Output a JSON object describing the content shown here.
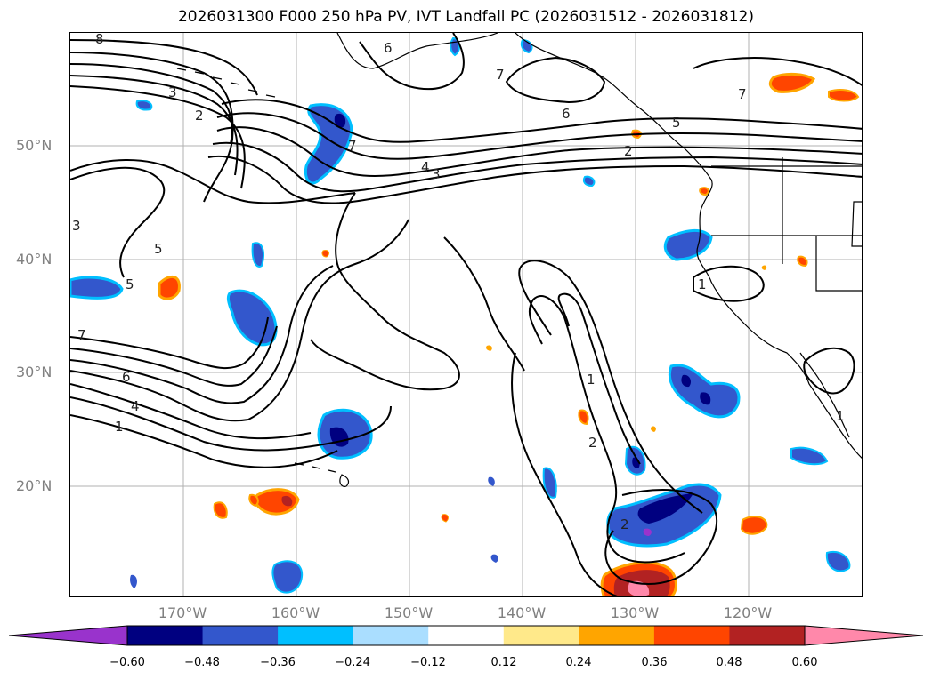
{
  "title": "2026031300 F000 250 hPa PV, IVT Landfall PC (2026031512 - 2026031812)",
  "lat_labels": [
    "50°N",
    "40°N",
    "30°N",
    "20°N"
  ],
  "lon_labels": [
    "170°W",
    "160°W",
    "150°W",
    "140°W",
    "130°W",
    "120°W"
  ],
  "colorbar": {
    "ticks": [
      "−0.60",
      "−0.48",
      "−0.36",
      "−0.24",
      "−0.12",
      "0.12",
      "0.24",
      "0.36",
      "0.48",
      "0.60"
    ],
    "colors": [
      "#9933cc",
      "#000080",
      "#3357cc",
      "#00bfff",
      "#aadeff",
      "#ffffff",
      "#ffe98a",
      "#ffa500",
      "#ff4500",
      "#b22222",
      "#ff88aa"
    ]
  },
  "contour_labels": {
    "c8": "8",
    "c3a": "3",
    "c2a": "2",
    "c6a": "6",
    "c7a": "7",
    "c7b": "7",
    "c6b": "6",
    "c5a": "5",
    "c2b": "2",
    "c7c": "7",
    "c4a": "4",
    "c3b": "3",
    "c3c": "3",
    "c5b": "5",
    "c5c": "5",
    "c7d": "7",
    "c6c": "6",
    "c4b": "4",
    "c1a": "1",
    "c1b": "1",
    "c1c": "1",
    "c2c": "2",
    "c2d": "2",
    "c1d": "1"
  }
}
